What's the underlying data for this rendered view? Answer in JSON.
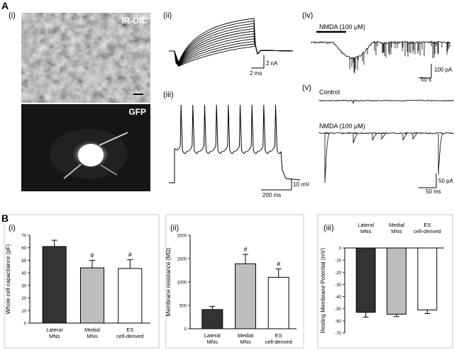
{
  "panel_A": {
    "letter": "A",
    "sub_i": "(i)",
    "sub_ii": "(ii)",
    "sub_iii": "(iii)",
    "sub_iv": "(iv)",
    "sub_v": "(v)",
    "ir_dic_label": "IR-DIC",
    "gfp_label": "GFP",
    "scale_ii_y": "2 nA",
    "scale_ii_x": "2 ms",
    "scale_iii_y": "10 mV",
    "scale_iii_x": "200 ms",
    "nmda_iv": "NMDA (100 μM)",
    "scale_iv_y": "100 pA",
    "scale_iv_x": "50 s",
    "control_label": "Control",
    "nmda_v": "NMDA (100 μM)",
    "scale_v_y": "50 pA",
    "scale_v_x": "50 ms"
  },
  "panel_B": {
    "letter": "B",
    "sub_i": "(i)",
    "sub_ii": "(ii)",
    "sub_iii": "(iii)"
  },
  "chart_data": [
    {
      "type": "bar",
      "categories": [
        "Lateral MNs",
        "Medial MNs",
        "ES cell-derived"
      ],
      "values": [
        61,
        44,
        43.5
      ],
      "errors": [
        5,
        6,
        7
      ],
      "significance": [
        "",
        "#",
        "#"
      ],
      "ylabel": "Whole cell capacitance (pF)",
      "ylim": [
        0,
        70
      ],
      "yticks": [
        0,
        10,
        20,
        30,
        40,
        50,
        60,
        70
      ],
      "colors": [
        "#333333",
        "#bdbdbd",
        "#ffffff"
      ]
    },
    {
      "type": "bar",
      "categories": [
        "Lateral MNs",
        "Medial MNs",
        "ES cell-derived"
      ],
      "values": [
        410,
        1390,
        1100
      ],
      "errors": [
        70,
        200,
        180
      ],
      "significance": [
        "",
        "#",
        "#"
      ],
      "ylabel": "Membrane resistance (MΩ)",
      "ylim": [
        0,
        2000
      ],
      "yticks": [
        0,
        500,
        1000,
        1500,
        2000
      ],
      "colors": [
        "#333333",
        "#bdbdbd",
        "#ffffff"
      ]
    },
    {
      "type": "bar",
      "categories": [
        "Lateral MNs",
        "Medial MNs",
        "ES cell-derived"
      ],
      "values": [
        -53,
        -54.5,
        -51
      ],
      "errors": [
        4,
        2,
        3
      ],
      "significance": [
        "",
        "",
        ""
      ],
      "ylabel": "Resting Membrane Potential (mV)",
      "ylim": [
        -70,
        0
      ],
      "yticks": [
        0,
        -10,
        -20,
        -30,
        -40,
        -50,
        -60,
        -70
      ],
      "colors": [
        "#333333",
        "#bdbdbd",
        "#ffffff"
      ]
    }
  ]
}
